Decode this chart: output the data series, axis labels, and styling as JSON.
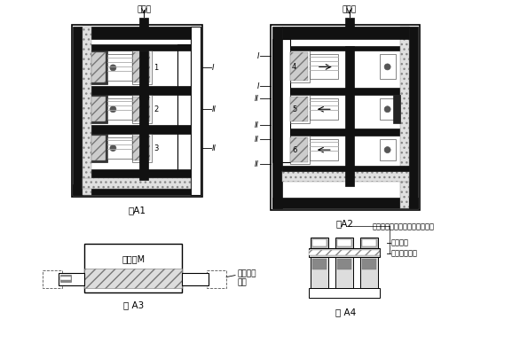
{
  "fig_width": 5.77,
  "fig_height": 3.87,
  "bg_color": "#ffffff",
  "title_A1": "图A1",
  "title_A2": "图A2",
  "title_A3": "图 A3",
  "title_A4": "图 A4",
  "inlet_label": "进油口",
  "A3_label": "中间块M",
  "A3_label2": "封闭螺钉",
  "A3_label3": "螺堵",
  "A4_label1": "相邻出口通过三通桥式接头汇集",
  "A4_label2": "中空螺钉",
  "A4_label3": "三通桥式接头"
}
